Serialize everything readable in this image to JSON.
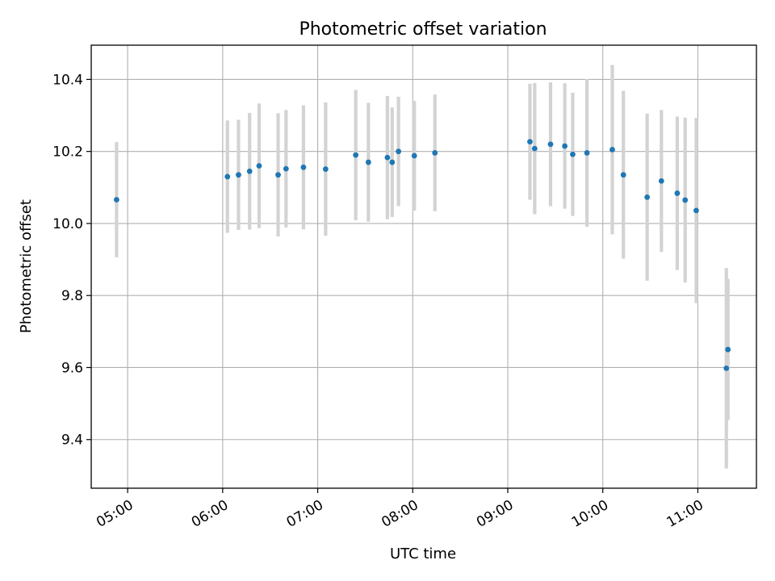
{
  "chart_data": {
    "type": "scatter",
    "title": "Photometric offset variation",
    "xlabel": "UTC time",
    "ylabel": "Photometric offset",
    "grid": true,
    "x_axis": {
      "type": "time",
      "range": [
        "04:37",
        "11:37"
      ],
      "ticks": [
        "05:00",
        "06:00",
        "07:00",
        "08:00",
        "09:00",
        "10:00",
        "11:00"
      ]
    },
    "y_axis": {
      "range": [
        9.265,
        10.495
      ],
      "ticks": [
        9.4,
        9.6,
        9.8,
        10.0,
        10.2,
        10.4
      ],
      "tick_labels": [
        "9.4",
        "9.6",
        "9.8",
        "10.0",
        "10.2",
        "10.4"
      ]
    },
    "series": [
      {
        "marker_color": "#1f77b4",
        "errorbar_color": "#d3d3d3",
        "points": [
          {
            "x": "04:53",
            "y": 10.066,
            "err": 0.16
          },
          {
            "x": "06:03",
            "y": 10.13,
            "err": 0.156
          },
          {
            "x": "06:10",
            "y": 10.135,
            "err": 0.153
          },
          {
            "x": "06:17",
            "y": 10.145,
            "err": 0.162
          },
          {
            "x": "06:23",
            "y": 10.16,
            "err": 0.173
          },
          {
            "x": "06:35",
            "y": 10.135,
            "err": 0.171
          },
          {
            "x": "06:40",
            "y": 10.152,
            "err": 0.163
          },
          {
            "x": "06:51",
            "y": 10.156,
            "err": 0.172
          },
          {
            "x": "07:05",
            "y": 10.151,
            "err": 0.185
          },
          {
            "x": "07:24",
            "y": 10.19,
            "err": 0.181
          },
          {
            "x": "07:32",
            "y": 10.17,
            "err": 0.165
          },
          {
            "x": "07:44",
            "y": 10.183,
            "err": 0.171
          },
          {
            "x": "07:47",
            "y": 10.17,
            "err": 0.152
          },
          {
            "x": "07:51",
            "y": 10.2,
            "err": 0.152
          },
          {
            "x": "08:01",
            "y": 10.188,
            "err": 0.152
          },
          {
            "x": "08:14",
            "y": 10.196,
            "err": 0.162
          },
          {
            "x": "09:14",
            "y": 10.227,
            "err": 0.161
          },
          {
            "x": "09:17",
            "y": 10.208,
            "err": 0.182
          },
          {
            "x": "09:27",
            "y": 10.22,
            "err": 0.172
          },
          {
            "x": "09:36",
            "y": 10.215,
            "err": 0.174
          },
          {
            "x": "09:41",
            "y": 10.192,
            "err": 0.171
          },
          {
            "x": "09:50",
            "y": 10.196,
            "err": 0.205
          },
          {
            "x": "10:06",
            "y": 10.205,
            "err": 0.235
          },
          {
            "x": "10:13",
            "y": 10.135,
            "err": 0.233
          },
          {
            "x": "10:28",
            "y": 10.073,
            "err": 0.232
          },
          {
            "x": "10:37",
            "y": 10.118,
            "err": 0.197
          },
          {
            "x": "10:47",
            "y": 10.084,
            "err": 0.213
          },
          {
            "x": "10:52",
            "y": 10.065,
            "err": 0.229
          },
          {
            "x": "10:59",
            "y": 10.036,
            "err": 0.257
          },
          {
            "x": "11:18",
            "y": 9.598,
            "err": 0.278
          },
          {
            "x": "11:19",
            "y": 9.65,
            "err": 0.196
          }
        ]
      }
    ]
  }
}
